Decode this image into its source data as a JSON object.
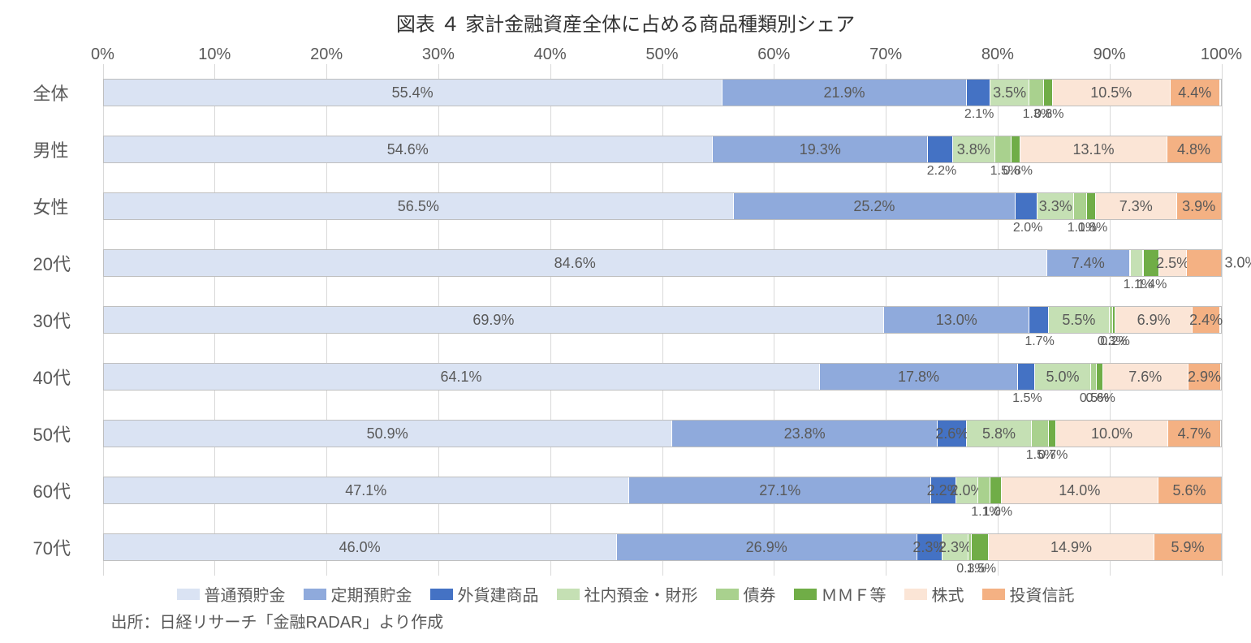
{
  "chart": {
    "title": "図表 ４ 家計金融資産全体に占める商品種類別シェア",
    "source": "出所：日経リサーチ「金融RADAR」より作成",
    "type": "stacked-bar-horizontal",
    "xlim": [
      0,
      100
    ],
    "xticks": [
      0,
      10,
      20,
      30,
      40,
      50,
      60,
      70,
      80,
      90,
      100
    ],
    "xtick_suffix": "%",
    "grid_color": "#d9d9d9",
    "background_color": "#ffffff",
    "text_color": "#595959",
    "label_fontsize": 18,
    "axis_fontsize": 20,
    "title_fontsize": 24,
    "series": [
      {
        "key": "futsuu",
        "label": "普通預貯金",
        "color": "#dae3f3"
      },
      {
        "key": "teiki",
        "label": "定期預貯金",
        "color": "#8faadc"
      },
      {
        "key": "gaika",
        "label": "外貨建商品",
        "color": "#4472c4"
      },
      {
        "key": "shanai",
        "label": "社内預金・財形",
        "color": "#c5e0b4"
      },
      {
        "key": "saiken",
        "label": "債券",
        "color": "#a9d18e"
      },
      {
        "key": "mmf",
        "label": "ＭＭＦ等",
        "color": "#70ad47"
      },
      {
        "key": "kabu",
        "label": "株式",
        "color": "#fbe5d6"
      },
      {
        "key": "toushin",
        "label": "投資信託",
        "color": "#f4b183"
      }
    ],
    "categories": [
      {
        "name": "全体",
        "values": [
          55.4,
          21.9,
          2.1,
          3.5,
          1.3,
          0.8,
          10.5,
          4.4
        ],
        "show_in_bar": [
          true,
          true,
          false,
          true,
          false,
          false,
          true,
          true
        ],
        "below": [
          null,
          null,
          "2.1%",
          null,
          "1.3%",
          "0.8%",
          null,
          null
        ]
      },
      {
        "name": "男性",
        "values": [
          54.6,
          19.3,
          2.2,
          3.8,
          1.5,
          0.8,
          13.1,
          4.8
        ],
        "show_in_bar": [
          true,
          true,
          false,
          true,
          false,
          false,
          true,
          true
        ],
        "below": [
          null,
          null,
          "2.2%",
          null,
          "1.5%",
          "0.8%",
          null,
          null
        ]
      },
      {
        "name": "女性",
        "values": [
          56.5,
          25.2,
          2.0,
          3.3,
          1.1,
          0.8,
          7.3,
          3.9
        ],
        "show_in_bar": [
          true,
          true,
          false,
          true,
          false,
          false,
          true,
          true
        ],
        "below": [
          null,
          null,
          "2.0%",
          null,
          "1.1%",
          "0.8%",
          null,
          null
        ]
      },
      {
        "name": "20代",
        "values": [
          84.6,
          7.4,
          0.0,
          1.1,
          0.0,
          1.4,
          2.5,
          3.0
        ],
        "show_in_bar": [
          true,
          true,
          false,
          false,
          false,
          false,
          true,
          false
        ],
        "below": [
          null,
          null,
          null,
          "1.1%",
          null,
          "1.4%",
          null,
          null
        ],
        "out_label": "3.0%"
      },
      {
        "name": "30代",
        "values": [
          69.9,
          13.0,
          1.7,
          5.5,
          0.3,
          0.2,
          6.9,
          2.4
        ],
        "show_in_bar": [
          true,
          true,
          false,
          true,
          false,
          false,
          true,
          true
        ],
        "below": [
          null,
          null,
          "1.7%",
          null,
          "0.3%",
          "0.2%",
          null,
          null
        ]
      },
      {
        "name": "40代",
        "values": [
          64.1,
          17.8,
          1.5,
          5.0,
          0.5,
          0.6,
          7.6,
          2.9
        ],
        "show_in_bar": [
          true,
          true,
          false,
          true,
          false,
          false,
          true,
          true
        ],
        "below": [
          null,
          null,
          "1.5%",
          null,
          "0.5%",
          "0.6%",
          null,
          null
        ]
      },
      {
        "name": "50代",
        "values": [
          50.9,
          23.8,
          2.6,
          5.8,
          1.5,
          0.7,
          10.0,
          4.7
        ],
        "show_in_bar": [
          true,
          true,
          true,
          true,
          false,
          false,
          true,
          true
        ],
        "below": [
          null,
          null,
          null,
          null,
          "1.5%",
          "0.7%",
          null,
          null
        ]
      },
      {
        "name": "60代",
        "values": [
          47.1,
          27.1,
          2.2,
          2.0,
          1.1,
          1.0,
          14.0,
          5.6
        ],
        "show_in_bar": [
          true,
          true,
          true,
          true,
          false,
          false,
          true,
          true
        ],
        "below": [
          null,
          null,
          null,
          null,
          "1.1%",
          "1.0%",
          null,
          null
        ]
      },
      {
        "name": "70代",
        "values": [
          46.0,
          26.9,
          2.3,
          2.3,
          0.3,
          1.5,
          14.9,
          5.9
        ],
        "show_in_bar": [
          true,
          true,
          true,
          true,
          false,
          false,
          true,
          true
        ],
        "below": [
          null,
          null,
          null,
          null,
          "0.3%",
          "1.5%",
          null,
          null
        ]
      }
    ]
  }
}
